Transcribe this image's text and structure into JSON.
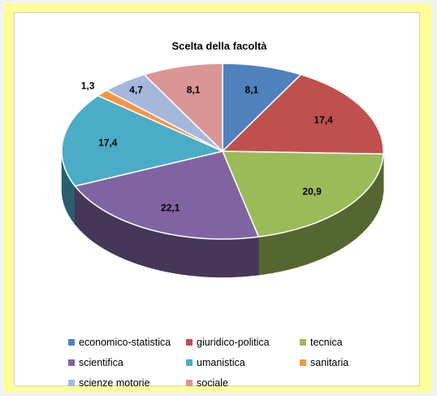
{
  "chart_data": {
    "type": "pie",
    "title": "Scelta della facoltà",
    "categories": [
      "economico-statistica",
      "giuridico-politica",
      "tecnica",
      "scientifica",
      "umanistica",
      "sanitaria",
      "scienze motorie",
      "sociale"
    ],
    "values": [
      8.1,
      17.4,
      20.9,
      22.1,
      17.4,
      1.3,
      4.7,
      8.1
    ],
    "labels": [
      "8,1",
      "17,4",
      "20,9",
      "22,1",
      "17,4",
      "1,3",
      "4,7",
      "8,1"
    ],
    "colors": [
      "#4f81bd",
      "#c0504d",
      "#9bbb59",
      "#8064a2",
      "#4bacc6",
      "#f79646",
      "#a5b8dc",
      "#d99694"
    ],
    "legend_position": "bottom",
    "style": "3d-pie"
  },
  "background_color": "#ffff99"
}
